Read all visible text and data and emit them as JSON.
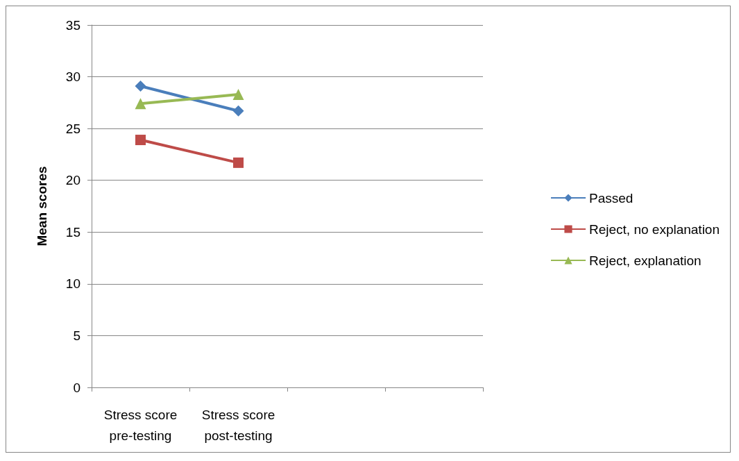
{
  "chart_data": {
    "type": "line",
    "ylabel": "Mean scores",
    "categories": [
      "Stress score\npre-testing",
      "Stress score\npost-testing",
      null,
      null
    ],
    "series": [
      {
        "name": "Passed",
        "color": "#4a7ebb",
        "marker": "diamond",
        "values": [
          29.1,
          26.7,
          null,
          null
        ]
      },
      {
        "name": "Reject, no explanation",
        "color": "#be4b48",
        "marker": "square",
        "values": [
          23.9,
          21.7,
          null,
          null
        ]
      },
      {
        "name": "Reject, explanation",
        "color": "#98b954",
        "marker": "triangle",
        "values": [
          27.4,
          28.3,
          null,
          null
        ]
      }
    ],
    "ylim": [
      0,
      35
    ],
    "yticks": [
      0,
      5,
      10,
      15,
      20,
      25,
      30,
      35
    ],
    "grid": "y",
    "legend": "right",
    "line_style": "solid"
  }
}
